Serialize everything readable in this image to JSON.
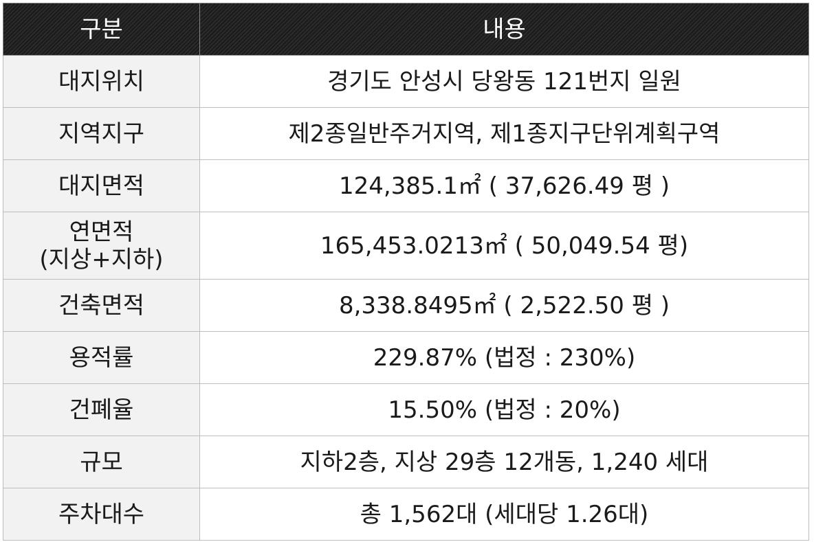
{
  "table": {
    "header": [
      "구분",
      "내용"
    ],
    "rows": [
      [
        "대지위치",
        "경기도 안성시 당왕동 121번지 일원"
      ],
      [
        "지역지구",
        "제2종일반주거지역, 제1종지구단위계획구역"
      ],
      [
        "대지면적",
        "124,385.1㎡ ( 37,626.49 평 )"
      ],
      [
        "연면적\n(지상+지하)",
        "165,453.0213㎡ ( 50,049.54 평)"
      ],
      [
        "건축면적",
        "8,338.8495㎡ ( 2,522.50 평 )"
      ],
      [
        "용적률",
        "229.87% (법정 : 230%)"
      ],
      [
        "건폐율",
        "15.50% (법정 : 20%)"
      ],
      [
        "규모",
        "지하2층, 지상 29층 12개동, 1,240 세대"
      ],
      [
        "주차대수",
        "총 1,562대 (세대당 1.26대)"
      ]
    ]
  }
}
